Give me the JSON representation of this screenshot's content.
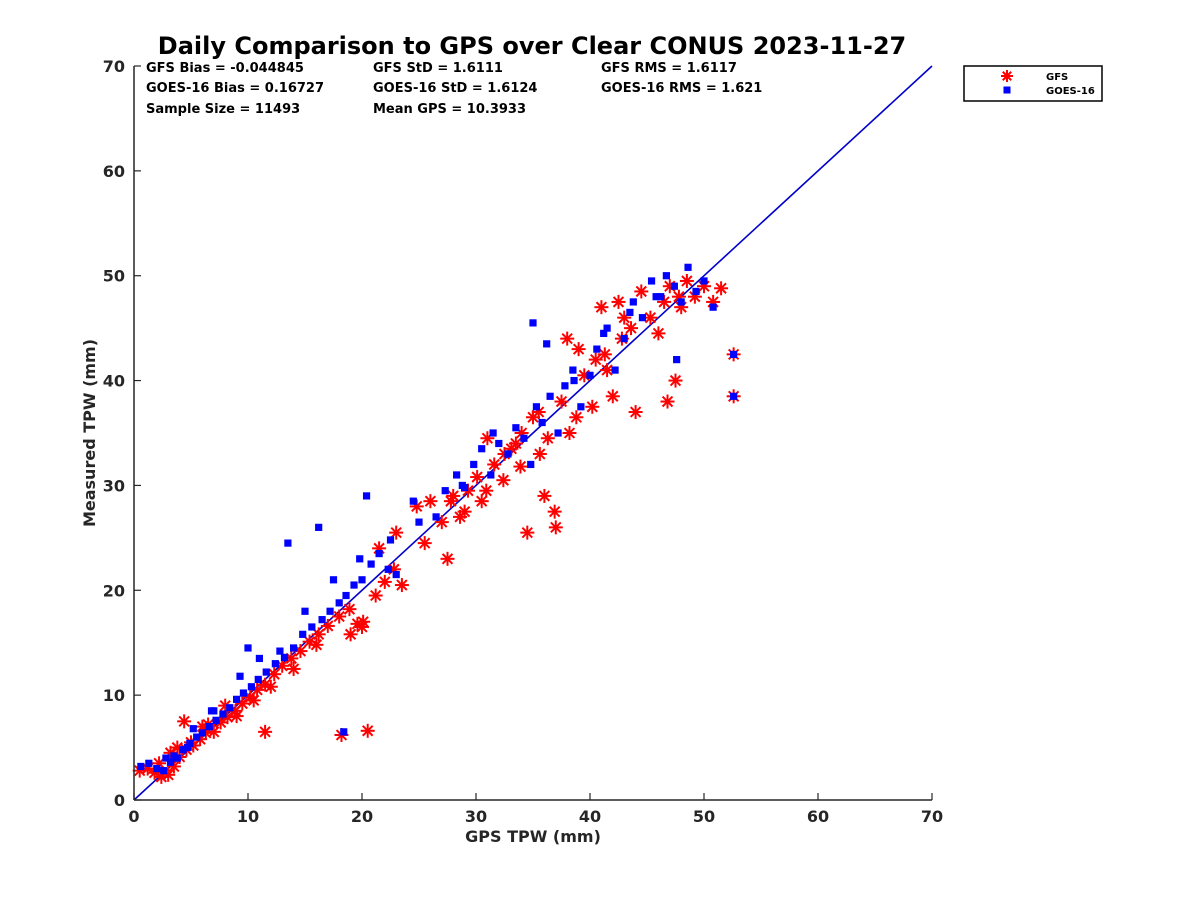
{
  "chart_data": {
    "type": "scatter",
    "title": "Daily Comparison to GPS over Clear CONUS 2023-11-27",
    "xlabel": "GPS TPW (mm)",
    "ylabel": "Measured TPW (mm)",
    "xlim": [
      0,
      70
    ],
    "ylim": [
      0,
      70
    ],
    "xticks": [
      "0",
      "10",
      "20",
      "30",
      "40",
      "50",
      "60",
      "70"
    ],
    "yticks": [
      "0",
      "10",
      "20",
      "30",
      "40",
      "50",
      "60",
      "70"
    ],
    "grid": false,
    "legend_position": "outside-top-right",
    "stats": [
      [
        "GFS Bias = -0.044845",
        "GFS StD = 1.6111",
        "GFS RMS = 1.6117"
      ],
      [
        "GOES-16 Bias = 0.16727",
        "GOES-16 StD = 1.6124",
        "GOES-16 RMS = 1.621"
      ],
      [
        "Sample Size = 11493",
        "Mean GPS = 10.3933"
      ]
    ],
    "reference_line": {
      "name": "1:1",
      "x": [
        0,
        70
      ],
      "y": [
        0,
        70
      ],
      "color": "#0000cc"
    },
    "series": [
      {
        "name": "GFS",
        "marker": "asterisk",
        "color": "#ff0000",
        "x": [
          0.5,
          1.2,
          1.8,
          2.4,
          3.0,
          3.5,
          4.0,
          4.6,
          5.2,
          5.8,
          6.3,
          7.0,
          7.6,
          8.2,
          8.9,
          9.5,
          10.2,
          10.8,
          11.5,
          12.3,
          13.0,
          13.8,
          14.6,
          15.4,
          16.2,
          17.0,
          18.0,
          18.2,
          18.9,
          19.6,
          20.1,
          20.5,
          21.2,
          22.0,
          22.8,
          23.5,
          24.8,
          26.0,
          27.0,
          27.8,
          28.6,
          29.3,
          30.1,
          30.9,
          31.6,
          32.4,
          33.1,
          33.9,
          34.5,
          35.0,
          35.6,
          36.3,
          36.9,
          37.5,
          38.2,
          38.8,
          39.5,
          40.2,
          41.0,
          41.3,
          42.0,
          42.8,
          43.6,
          44.5,
          45.3,
          46.0,
          46.5,
          47.0,
          47.8,
          48.5,
          49.2,
          50.0,
          50.8,
          51.5,
          52.6,
          52.6,
          2.2,
          3.8,
          5.0,
          6.5,
          9.0,
          10.5,
          12.0,
          14.0,
          16.0,
          19.0,
          21.5,
          23.0,
          25.5,
          28.0,
          30.5,
          32.5,
          34.0,
          35.5,
          37.0,
          39.0,
          40.5,
          42.5,
          44.0,
          46.8,
          47.5,
          4.4,
          8.0,
          11.5,
          20.0,
          27.5,
          29.0,
          31.0,
          33.5,
          36.0,
          38.0,
          41.5,
          43.0,
          48.0,
          3.2,
          6.0
        ],
        "y": [
          2.8,
          3.0,
          2.6,
          2.2,
          2.4,
          3.2,
          4.1,
          4.8,
          5.2,
          5.8,
          6.4,
          6.5,
          7.4,
          7.9,
          8.5,
          9.2,
          9.8,
          10.5,
          11.0,
          12.0,
          12.8,
          13.5,
          14.2,
          15.1,
          15.8,
          16.6,
          17.5,
          6.2,
          18.2,
          16.8,
          17.0,
          6.6,
          19.5,
          20.8,
          22.0,
          20.5,
          28.0,
          28.5,
          26.5,
          28.5,
          27.0,
          29.5,
          30.8,
          29.5,
          32.0,
          30.5,
          33.5,
          31.8,
          25.5,
          36.5,
          33.0,
          34.5,
          27.5,
          38.0,
          35.0,
          36.5,
          40.5,
          37.5,
          47.0,
          42.5,
          38.5,
          44.0,
          45.0,
          48.5,
          46.0,
          44.5,
          47.5,
          49.0,
          48.0,
          49.5,
          48.0,
          49.0,
          47.5,
          48.8,
          42.5,
          38.5,
          3.5,
          5.0,
          5.5,
          7.2,
          8.0,
          9.5,
          10.8,
          12.5,
          14.8,
          15.8,
          24.0,
          25.5,
          24.5,
          29.0,
          28.5,
          33.0,
          35.0,
          37.0,
          26.0,
          43.0,
          42.0,
          47.5,
          37.0,
          38.0,
          40.0,
          7.5,
          9.0,
          6.5,
          16.5,
          23.0,
          27.5,
          34.5,
          34.0,
          29.0,
          44.0,
          41.0,
          46.0,
          47.0,
          4.5,
          7.0
        ]
      },
      {
        "name": "GOES-16",
        "marker": "square",
        "color": "#0000ff",
        "x": [
          0.6,
          1.3,
          2.0,
          2.6,
          3.2,
          3.8,
          4.3,
          4.9,
          5.5,
          6.0,
          6.6,
          7.2,
          7.8,
          8.4,
          9.0,
          9.6,
          10.3,
          10.9,
          11.6,
          12.4,
          13.2,
          13.5,
          14.0,
          14.8,
          15.6,
          16.2,
          16.5,
          17.2,
          18.0,
          18.6,
          19.3,
          20.0,
          20.4,
          20.8,
          21.5,
          22.3,
          23.0,
          24.5,
          26.5,
          27.3,
          28.3,
          29.0,
          29.8,
          30.5,
          31.3,
          32.0,
          32.8,
          33.5,
          34.2,
          35.0,
          35.3,
          35.8,
          36.5,
          37.2,
          37.8,
          38.5,
          39.2,
          40.0,
          40.6,
          41.5,
          42.2,
          43.0,
          43.8,
          44.6,
          45.4,
          46.2,
          46.7,
          47.4,
          48.0,
          48.6,
          49.3,
          50.0,
          50.8,
          52.6,
          52.6,
          3.5,
          5.2,
          7.0,
          9.3,
          11.0,
          12.8,
          15.0,
          17.5,
          19.8,
          22.5,
          25.0,
          28.8,
          31.5,
          34.8,
          36.2,
          38.6,
          41.2,
          43.5,
          45.8,
          47.6,
          2.8,
          4.7,
          6.8,
          10.0,
          18.4
        ],
        "y": [
          3.2,
          3.5,
          3.0,
          2.8,
          3.6,
          4.0,
          4.8,
          5.4,
          6.0,
          6.4,
          7.0,
          7.6,
          8.2,
          8.8,
          9.6,
          10.2,
          10.8,
          11.5,
          12.2,
          13.0,
          13.6,
          24.5,
          14.5,
          15.8,
          16.5,
          26.0,
          17.2,
          18.0,
          18.8,
          19.5,
          20.5,
          21.0,
          29.0,
          22.5,
          23.5,
          22.0,
          21.5,
          28.5,
          27.0,
          29.5,
          31.0,
          29.8,
          32.0,
          33.5,
          31.0,
          34.0,
          33.0,
          35.5,
          34.5,
          45.5,
          37.5,
          36.0,
          38.5,
          35.0,
          39.5,
          41.0,
          37.5,
          40.5,
          43.0,
          45.0,
          41.0,
          44.0,
          47.5,
          46.0,
          49.5,
          48.0,
          50.0,
          49.0,
          47.5,
          50.8,
          48.5,
          49.5,
          47.0,
          42.5,
          38.5,
          4.2,
          6.8,
          8.5,
          11.8,
          13.5,
          14.2,
          18.0,
          21.0,
          23.0,
          24.8,
          26.5,
          30.0,
          35.0,
          32.0,
          43.5,
          40.0,
          44.5,
          46.5,
          48.0,
          42.0,
          4.0,
          5.0,
          8.5,
          14.5,
          6.5
        ]
      }
    ]
  }
}
